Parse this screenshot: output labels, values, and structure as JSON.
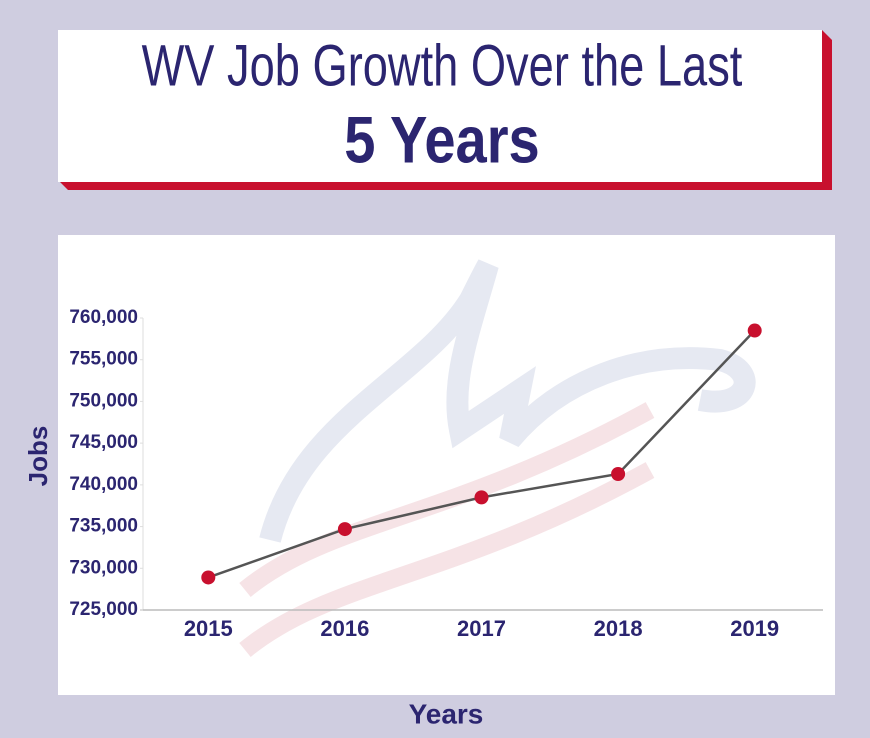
{
  "chart_data": {
    "type": "line",
    "title": "WV Job Growth Over the Last",
    "subtitle": "5 Years",
    "x_label": "Years",
    "y_label": "Jobs",
    "categories": [
      "2015",
      "2016",
      "2017",
      "2018",
      "2019"
    ],
    "values": [
      728900,
      734700,
      738500,
      741300,
      758500
    ],
    "color": "#555555",
    "marker_color": "#c8102e",
    "ylim": [
      725000,
      760000
    ],
    "yticks": [
      {
        "value": 725000,
        "label": "725,000"
      },
      {
        "value": 730000,
        "label": "730,000"
      },
      {
        "value": 735000,
        "label": "735,000"
      },
      {
        "value": 740000,
        "label": "740,000"
      },
      {
        "value": 745000,
        "label": "745,000"
      },
      {
        "value": 750000,
        "label": "750,000"
      },
      {
        "value": 755000,
        "label": "755,000"
      },
      {
        "value": 760000,
        "label": "760,000"
      }
    ],
    "grid": false
  }
}
